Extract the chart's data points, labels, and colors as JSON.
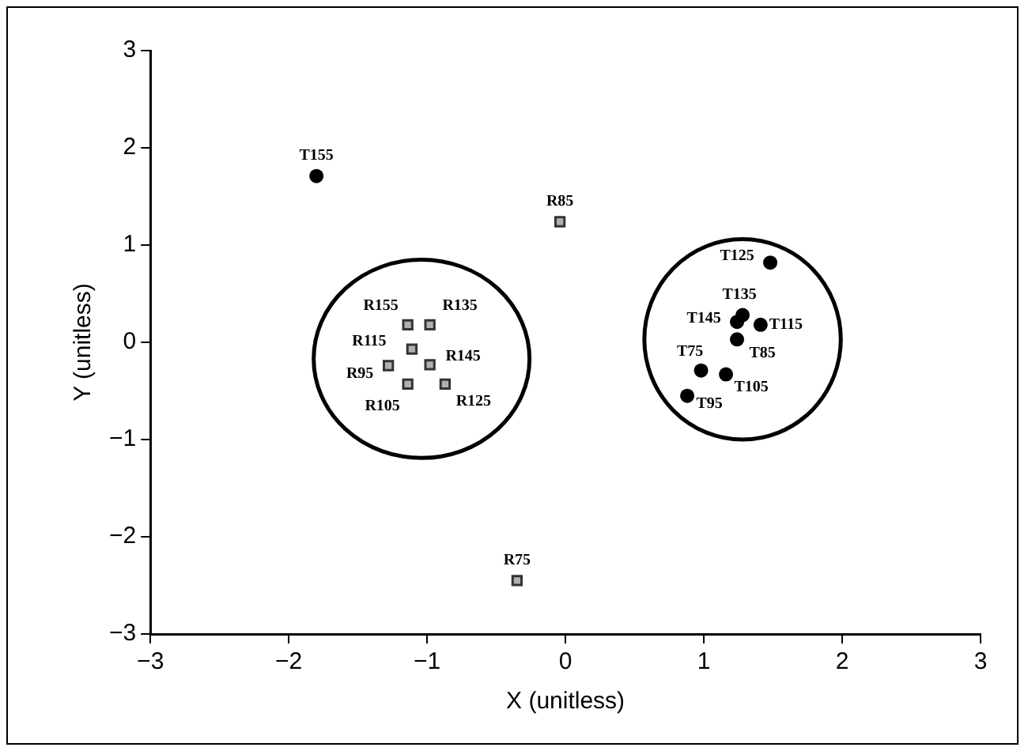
{
  "chart_data": {
    "type": "scatter",
    "xlabel": "X (unitless)",
    "ylabel": "Y (unitless)",
    "xlim": [
      -3,
      3
    ],
    "ylim": [
      -3,
      3
    ],
    "xticks": [
      {
        "value": -3,
        "label": "−3"
      },
      {
        "value": -2,
        "label": "−2"
      },
      {
        "value": -1,
        "label": "−1"
      },
      0,
      1,
      2,
      3
    ],
    "yticks": [
      {
        "value": -3,
        "label": "−3"
      },
      {
        "value": -2,
        "label": "−2"
      },
      {
        "value": -1,
        "label": "−1"
      },
      0,
      1,
      2,
      3
    ],
    "grid": false,
    "legend": false,
    "series": [
      {
        "color": "#b0b0b0",
        "marker": "square",
        "x": [
          -1.14,
          -0.98,
          -1.11,
          -0.98,
          -1.28,
          -1.14,
          -0.87,
          -0.04,
          -0.35
        ],
        "values": [
          0.18,
          0.18,
          -0.07,
          -0.23,
          -0.24,
          -0.43,
          -0.43,
          1.24,
          -2.45
        ]
      },
      {
        "color": "#000000",
        "marker": "circle",
        "x": [
          1.48,
          1.28,
          1.24,
          1.41,
          1.24,
          0.98,
          1.16,
          0.88,
          -1.8
        ],
        "values": [
          0.82,
          0.28,
          0.21,
          0.18,
          0.03,
          -0.29,
          -0.33,
          -0.55,
          1.71
        ]
      }
    ],
    "annotations": [
      {
        "text": "R155",
        "x": -1.14,
        "y": 0.18
      },
      {
        "text": "R135",
        "x": -0.98,
        "y": 0.18
      },
      {
        "text": "R115",
        "x": -1.11,
        "y": -0.07
      },
      {
        "text": "R145",
        "x": -0.98,
        "y": -0.23
      },
      {
        "text": "R95",
        "x": -1.28,
        "y": -0.24
      },
      {
        "text": "R105",
        "x": -1.14,
        "y": -0.43
      },
      {
        "text": "R125",
        "x": -0.87,
        "y": -0.43
      },
      {
        "text": "R85",
        "x": -0.04,
        "y": 1.24
      },
      {
        "text": "R75",
        "x": -0.35,
        "y": -2.45
      },
      {
        "text": "T125",
        "x": 1.48,
        "y": 0.82
      },
      {
        "text": "T135",
        "x": 1.28,
        "y": 0.28
      },
      {
        "text": "T145",
        "x": 1.24,
        "y": 0.21
      },
      {
        "text": "T115",
        "x": 1.41,
        "y": 0.18
      },
      {
        "text": "T85",
        "x": 1.24,
        "y": 0.03
      },
      {
        "text": "T75",
        "x": 0.98,
        "y": -0.29
      },
      {
        "text": "T105",
        "x": 1.16,
        "y": -0.33
      },
      {
        "text": "T95",
        "x": 0.88,
        "y": -0.55
      },
      {
        "text": "T155",
        "x": -1.8,
        "y": 1.71
      }
    ]
  }
}
